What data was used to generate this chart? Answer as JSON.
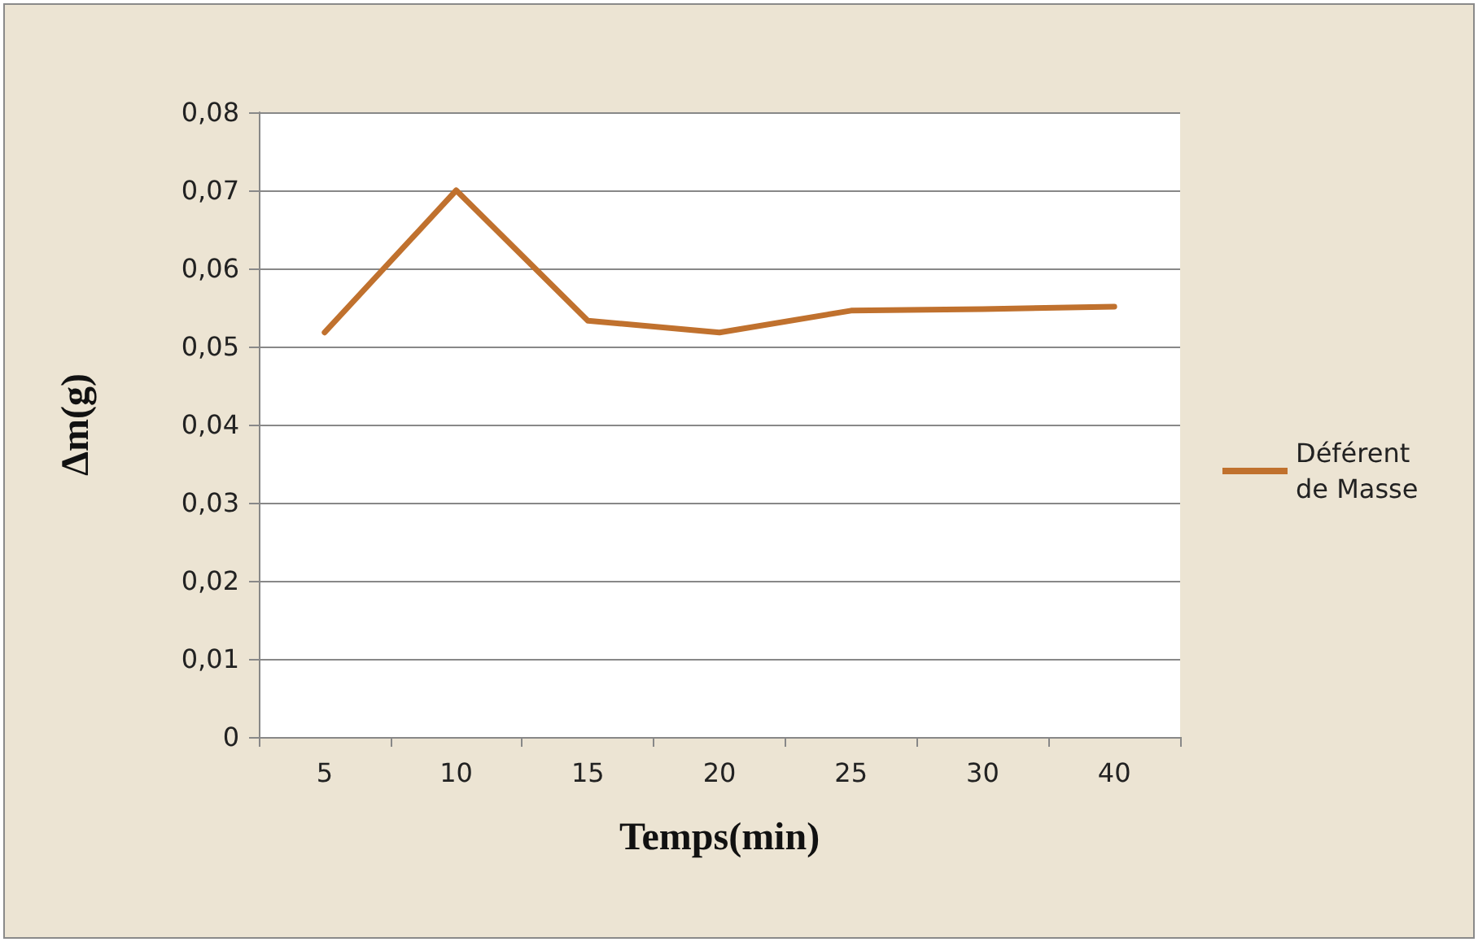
{
  "chart_data": {
    "type": "line",
    "xlabel": "Temps(min)",
    "ylabel": "Δm(g)",
    "categories": [
      "5",
      "10",
      "15",
      "20",
      "25",
      "30",
      "40"
    ],
    "series": [
      {
        "name": "Déférent de Masse",
        "color": "#c0712e",
        "values": [
          0.0518,
          0.07,
          0.0533,
          0.0518,
          0.0546,
          0.0548,
          0.0551
        ]
      }
    ],
    "ylim": [
      0,
      0.08
    ],
    "yticks": [
      0,
      {
        "value": 0.01,
        "label": "0,01"
      },
      {
        "value": 0.02,
        "label": "0,02"
      },
      {
        "value": 0.03,
        "label": "0,03"
      },
      {
        "value": 0.04,
        "label": "0,04"
      },
      {
        "value": 0.05,
        "label": "0,05"
      },
      {
        "value": 0.06,
        "label": "0,06"
      },
      {
        "value": 0.07,
        "label": "0,07"
      },
      {
        "value": 0.08,
        "label": "0,08"
      }
    ],
    "grid": "y",
    "legend": "right",
    "marker": "none",
    "line_style": "solid"
  }
}
